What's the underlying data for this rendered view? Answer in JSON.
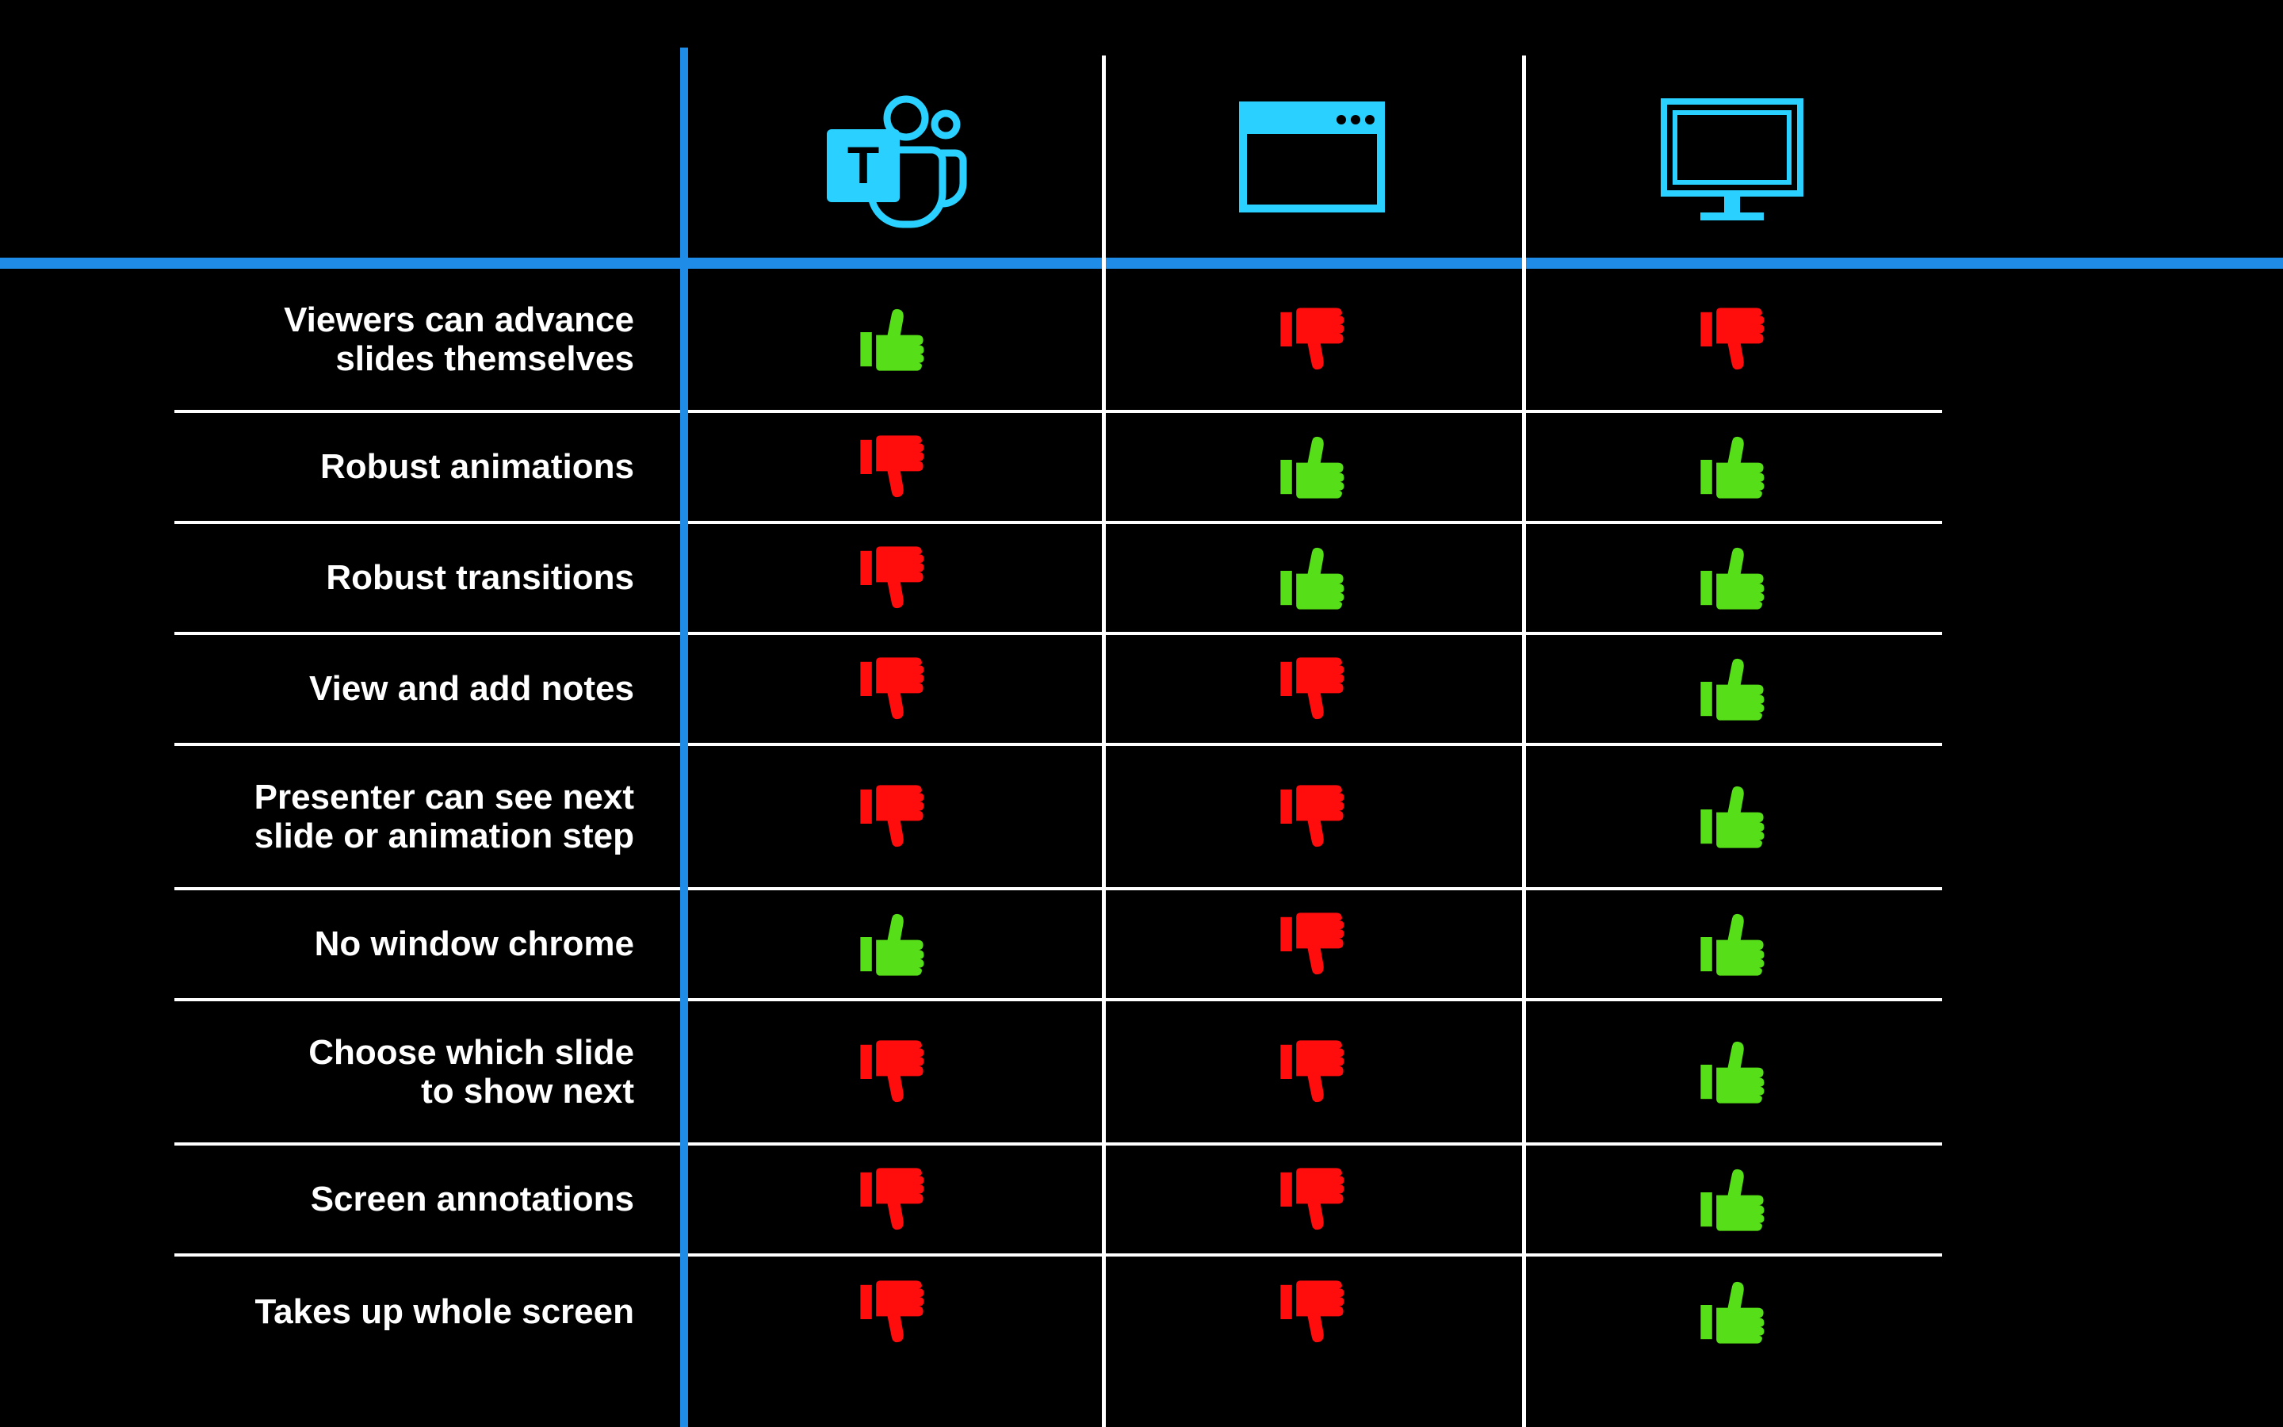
{
  "type": "comparison-table",
  "background_color": "#000000",
  "accent_blue": "#1f8ce8",
  "icon_cyan": "#2ad0ff",
  "row_line_color": "#ffffff",
  "label_color": "#ffffff",
  "label_fontsize_pt": 33,
  "label_fontweight": 700,
  "thumbs_up_color": "#56de18",
  "thumbs_down_color": "#ff0d0d",
  "columns": [
    {
      "id": "teams",
      "icon": "teams-icon"
    },
    {
      "id": "window",
      "icon": "window-icon"
    },
    {
      "id": "desktop",
      "icon": "desktop-icon"
    }
  ],
  "rows": [
    {
      "label": "Viewers can advance\nslides themselves",
      "lines": 2,
      "vals": [
        "up",
        "down",
        "down"
      ]
    },
    {
      "label": "Robust animations",
      "lines": 1,
      "vals": [
        "down",
        "up",
        "up"
      ]
    },
    {
      "label": "Robust transitions",
      "lines": 1,
      "vals": [
        "down",
        "up",
        "up"
      ]
    },
    {
      "label": "View and add notes",
      "lines": 1,
      "vals": [
        "down",
        "down",
        "up"
      ]
    },
    {
      "label": "Presenter can see next\nslide or animation step",
      "lines": 2,
      "vals": [
        "down",
        "down",
        "up"
      ]
    },
    {
      "label": "No window chrome",
      "lines": 1,
      "vals": [
        "up",
        "down",
        "up"
      ]
    },
    {
      "label": "Choose which slide\nto show next",
      "lines": 2,
      "vals": [
        "down",
        "down",
        "up"
      ]
    },
    {
      "label": "Screen annotations",
      "lines": 1,
      "vals": [
        "down",
        "down",
        "up"
      ]
    },
    {
      "label": "Takes up whole screen",
      "lines": 1,
      "vals": [
        "down",
        "down",
        "up"
      ]
    }
  ]
}
